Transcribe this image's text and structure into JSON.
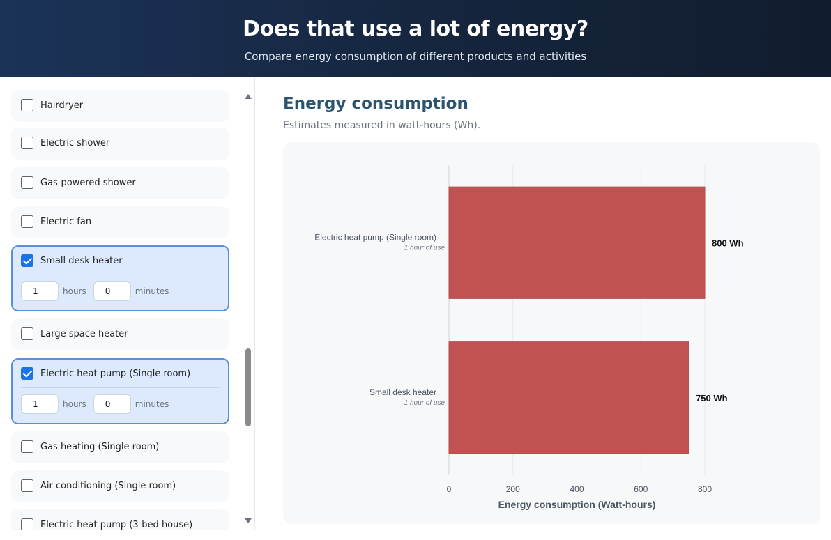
{
  "header": {
    "title": "Does that use a lot of energy?",
    "subtitle": "Compare energy consumption of different products and activities"
  },
  "sidebar": {
    "items": [
      {
        "label": "Hairdryer",
        "checked": false
      },
      {
        "label": "Electric shower",
        "checked": false
      },
      {
        "label": "Gas-powered shower",
        "checked": false
      },
      {
        "label": "Electric fan",
        "checked": false
      },
      {
        "label": "Small desk heater",
        "checked": true,
        "hours": "1",
        "minutes": "0"
      },
      {
        "label": "Large space heater",
        "checked": false
      },
      {
        "label": "Electric heat pump (Single room)",
        "checked": true,
        "hours": "1",
        "minutes": "0"
      },
      {
        "label": "Gas heating (Single room)",
        "checked": false
      },
      {
        "label": "Air conditioning (Single room)",
        "checked": false
      },
      {
        "label": "Electric heat pump (3-bed house)",
        "checked": false
      }
    ],
    "hours_label": "hours",
    "minutes_label": "minutes"
  },
  "main": {
    "title": "Energy consumption",
    "subtitle": "Estimates measured in watt-hours (Wh)."
  },
  "chart_data": {
    "type": "bar",
    "orientation": "horizontal",
    "categories": [
      "Electric heat pump (Single room)",
      "Small desk heater"
    ],
    "sublabels": [
      "1 hour of use",
      "1 hour of use"
    ],
    "values": [
      800,
      750
    ],
    "value_labels": [
      "800 Wh",
      "750 Wh"
    ],
    "xlabel": "Energy consumption (Watt-hours)",
    "xlim": [
      0,
      800
    ],
    "xticks": [
      0,
      200,
      400,
      600,
      800
    ],
    "grid": true,
    "bar_color": "#c05252"
  }
}
